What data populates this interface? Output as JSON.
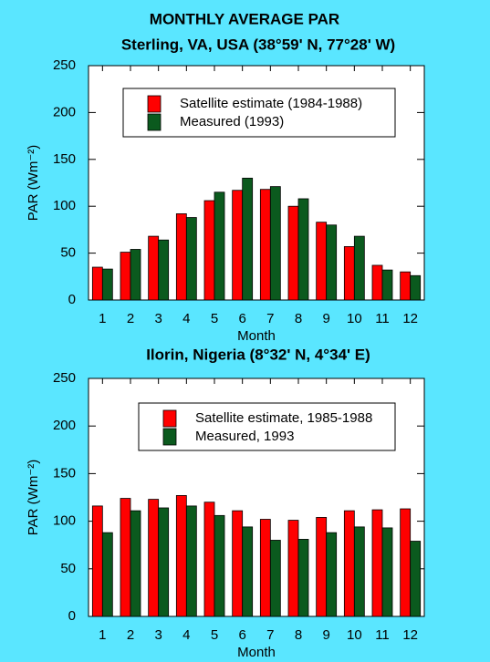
{
  "chart_data": [
    {
      "type": "bar",
      "title": "MONTHLY AVERAGE PAR",
      "subtitle": "Sterling, VA, USA (38°59' N, 77°28' W)",
      "xlabel": "Month",
      "ylabel": "PAR (Wm⁻²)",
      "categories": [
        "1",
        "2",
        "3",
        "4",
        "5",
        "6",
        "7",
        "8",
        "9",
        "10",
        "11",
        "12"
      ],
      "series": [
        {
          "name": "Satellite estimate (1984-1988)",
          "color": "#ff0000",
          "values": [
            35,
            51,
            68,
            92,
            106,
            117,
            118,
            100,
            83,
            57,
            37,
            30
          ]
        },
        {
          "name": "Measured (1993)",
          "color": "#0b5a1e",
          "values": [
            33,
            54,
            64,
            88,
            115,
            130,
            121,
            108,
            80,
            68,
            32,
            26
          ]
        }
      ],
      "ylim": [
        0,
        250
      ],
      "yticks": [
        0,
        50,
        100,
        150,
        200,
        250
      ]
    },
    {
      "type": "bar",
      "subtitle": "Ilorin, Nigeria (8°32' N, 4°34' E)",
      "xlabel": "Month",
      "ylabel": "PAR (Wm⁻²)",
      "categories": [
        "1",
        "2",
        "3",
        "4",
        "5",
        "6",
        "7",
        "8",
        "9",
        "10",
        "11",
        "12"
      ],
      "series": [
        {
          "name": "Satellite estimate, 1985-1988",
          "color": "#ff0000",
          "values": [
            116,
            124,
            123,
            127,
            120,
            111,
            102,
            101,
            104,
            111,
            112,
            113
          ]
        },
        {
          "name": "Measured, 1993",
          "color": "#0b5a1e",
          "values": [
            88,
            111,
            114,
            116,
            106,
            94,
            80,
            81,
            88,
            94,
            93,
            79
          ]
        }
      ],
      "ylim": [
        0,
        250
      ],
      "yticks": [
        0,
        50,
        100,
        150,
        200,
        250
      ]
    }
  ]
}
